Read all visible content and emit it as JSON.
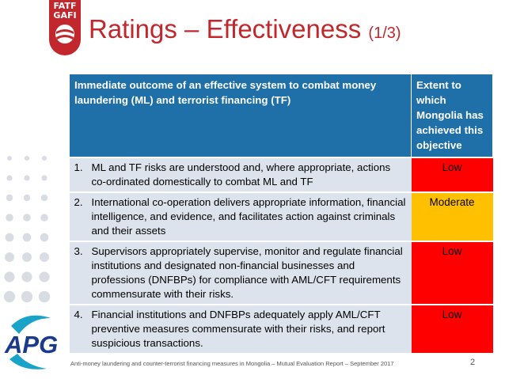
{
  "logo": {
    "fatf_line1": "FATF",
    "fatf_line2": "GAFI",
    "apg_text": "APG"
  },
  "title": {
    "main": "Ratings – Effectiveness",
    "sub": "(1/3)"
  },
  "table": {
    "header_outcome": "Immediate outcome of an effective system to combat money laundering (ML) and terrorist financing (TF)",
    "header_rating": "Extent to which Mongolia has achieved this objective",
    "rows": [
      {
        "num": "1.",
        "text": "ML and TF risks are understood and, where appropriate, actions co-ordinated domestically to combat ML and TF",
        "rating": "Low",
        "rating_color": "#ff0000"
      },
      {
        "num": "2.",
        "text": "International co-operation delivers appropriate information, financial intelligence, and evidence, and facilitates action against criminals and  their assets",
        "rating": "Moderate",
        "rating_color": "#ffc000"
      },
      {
        "num": "3.",
        "text": "Supervisors appropriately supervise, monitor and regulate financial institutions and designated non-financial businesses and professions (DNFBPs) for compliance with AML/CFT requirements commensurate with their risks.",
        "rating": "Low",
        "rating_color": "#ff0000"
      },
      {
        "num": "4.",
        "text": "Financial institutions and DNFBPs adequately apply AML/CFT preventive measures commensurate with their risks, and report suspicious transactions.",
        "rating": "Low",
        "rating_color": "#ff0000"
      }
    ]
  },
  "footer": {
    "text": "Anti-money laundering and counter-terrorist financing measures in Mongolia – Mutual Evaluation Report – September 2017",
    "page": "2"
  },
  "colors": {
    "brand_red": "#c1272d",
    "header_blue": "#1f6fa8",
    "row_bg": "#dde3ec",
    "low": "#ff0000",
    "moderate": "#ffc000"
  }
}
